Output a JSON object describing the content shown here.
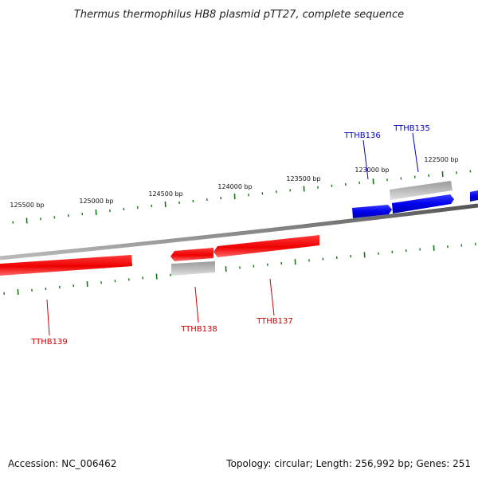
{
  "title": "Thermus thermophilus HB8 plasmid pTT27, complete sequence",
  "footer": {
    "accession": "Accession: NC_006462",
    "topology": "Topology: circular; Length: 256,992 bp; Genes: 251"
  },
  "ruler_labels": [
    "125500 bp",
    "125000 bp",
    "124500 bp",
    "124000 bp",
    "123500 bp",
    "123000 bp",
    "122500 bp"
  ],
  "genes": [
    {
      "id": "TTHB136",
      "strand": "forward",
      "color": "#0000cc"
    },
    {
      "id": "TTHB135",
      "strand": "forward",
      "color": "#0000cc"
    },
    {
      "id": "TTHB139",
      "strand": "reverse",
      "color": "#cc0000"
    },
    {
      "id": "TTHB138",
      "strand": "reverse",
      "color": "#cc0000"
    },
    {
      "id": "TTHB137",
      "strand": "reverse",
      "color": "#cc0000"
    }
  ],
  "colors": {
    "forward_gene": "#0000ee",
    "reverse_gene": "#ee0000",
    "tick": "#117711",
    "backbone": "#777777",
    "pseudo_gray": "#aaaaaa"
  }
}
